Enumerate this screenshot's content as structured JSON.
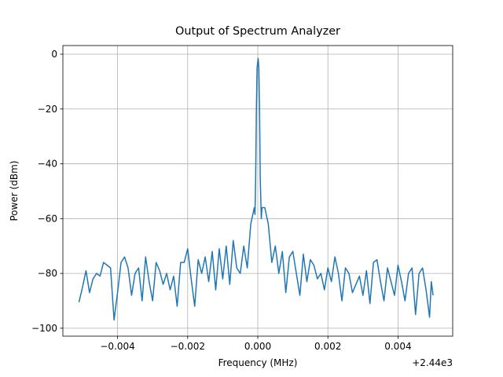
{
  "chart_data": {
    "type": "line",
    "title": "Output of Spectrum Analyzer",
    "x_label": "Frequency (MHz)",
    "y_label": "Power (dBm)",
    "x_offset_label": "+2.44e3",
    "xlim": [
      -0.00556,
      0.00556
    ],
    "ylim": [
      -102.9,
      3.15
    ],
    "xticks": [
      {
        "value": -0.004,
        "label": "−0.004"
      },
      {
        "value": -0.002,
        "label": "−0.002"
      },
      {
        "value": 0,
        "label": "0.000"
      },
      {
        "value": 0.002,
        "label": "0.002"
      },
      {
        "value": 0.004,
        "label": "0.004"
      }
    ],
    "yticks": [
      {
        "value": -100,
        "label": "−100"
      },
      {
        "value": -80,
        "label": "−80"
      },
      {
        "value": -60,
        "label": "−60"
      },
      {
        "value": -40,
        "label": "−40"
      },
      {
        "value": -20,
        "label": "−20"
      },
      0
    ],
    "grid": true,
    "x": [
      -0.0051,
      -0.005,
      -0.0049,
      -0.0048,
      -0.0047,
      -0.0046,
      -0.0045,
      -0.0044,
      -0.0043,
      -0.0042,
      -0.0041,
      -0.004,
      -0.0039,
      -0.0038,
      -0.0037,
      -0.0036,
      -0.0035,
      -0.0034,
      -0.0033,
      -0.0032,
      -0.0031,
      -0.003,
      -0.0029,
      -0.0028,
      -0.0027,
      -0.0026,
      -0.0025,
      -0.0024,
      -0.0023,
      -0.0022,
      -0.0021,
      -0.002,
      -0.0019,
      -0.0018,
      -0.0017,
      -0.0016,
      -0.0015,
      -0.0014,
      -0.0013,
      -0.0012,
      -0.0011,
      -0.001,
      -0.0009,
      -0.0008,
      -0.0007,
      -0.0006,
      -0.0005,
      -0.0004,
      -0.0003,
      -0.0002,
      -0.0001,
      -8e-05,
      -6e-05,
      -4e-05,
      -2e-05,
      1e-05,
      3e-05,
      5e-05,
      7e-05,
      0.0001,
      0.00012,
      0.0002,
      0.0003,
      0.0004,
      0.0005,
      0.0006,
      0.0007,
      0.0008,
      0.0009,
      0.001,
      0.0011,
      0.0012,
      0.0013,
      0.0014,
      0.0015,
      0.0016,
      0.0017,
      0.0018,
      0.0019,
      0.002,
      0.0021,
      0.0022,
      0.0023,
      0.0024,
      0.0025,
      0.0026,
      0.0027,
      0.0028,
      0.0029,
      0.003,
      0.0031,
      0.0032,
      0.0033,
      0.0034,
      0.0035,
      0.0036,
      0.0037,
      0.0038,
      0.0039,
      0.004,
      0.0041,
      0.0042,
      0.0043,
      0.0044,
      0.0045,
      0.0046,
      0.0047,
      0.0048,
      0.0049,
      0.00495,
      0.005
    ],
    "series": [
      {
        "color": "#1f77b4",
        "values": [
          -90.5,
          -85,
          -79,
          -87,
          -82,
          -80,
          -81,
          -76,
          -77,
          -78,
          -97,
          -87,
          -76,
          -74,
          -78,
          -88,
          -80,
          -78,
          -90,
          -74,
          -83,
          -90,
          -76,
          -79,
          -84,
          -80,
          -86,
          -81,
          -92,
          -76,
          -76,
          -71,
          -82,
          -92,
          -75,
          -80,
          -74,
          -83,
          -72,
          -86,
          -71,
          -82,
          -70,
          -84,
          -68,
          -78,
          -80,
          -70,
          -78,
          -62,
          -56,
          -58.5,
          -45,
          -20,
          -5,
          -1.5,
          -5,
          -20,
          -45,
          -60,
          -56,
          -56,
          -62,
          -76,
          -70,
          -80,
          -72,
          -87,
          -74,
          -72,
          -80,
          -88,
          -73,
          -83,
          -75,
          -77,
          -82,
          -80,
          -86,
          -78,
          -83,
          -74,
          -80,
          -90,
          -78,
          -80,
          -87,
          -84,
          -81,
          -88,
          -79,
          -91,
          -76,
          -75,
          -83,
          -90,
          -78,
          -83,
          -88,
          -77,
          -83,
          -90,
          -80,
          -78,
          -95,
          -80,
          -78,
          -86,
          -96,
          -83,
          -88
        ]
      }
    ]
  }
}
